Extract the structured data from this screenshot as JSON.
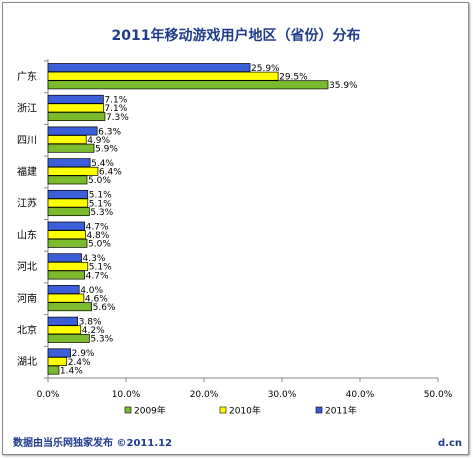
{
  "chart_data": {
    "type": "bar",
    "orientation": "horizontal",
    "title": "2011年移动游戏用户地区（省份）分布",
    "categories": [
      "广东",
      "浙江",
      "四川",
      "福建",
      "江苏",
      "山东",
      "河北",
      "河南",
      "北京",
      "湖北"
    ],
    "series": [
      {
        "name": "2011年",
        "color": "#3a5fd9",
        "values": [
          25.9,
          7.1,
          6.3,
          5.4,
          5.1,
          4.7,
          4.3,
          4.0,
          3.8,
          2.9
        ]
      },
      {
        "name": "2010年",
        "color": "#ffff00",
        "values": [
          29.5,
          7.1,
          4.9,
          6.4,
          5.1,
          4.8,
          5.1,
          4.6,
          4.2,
          2.4
        ]
      },
      {
        "name": "2009年",
        "color": "#7dbb2e",
        "values": [
          35.9,
          7.3,
          5.9,
          5.0,
          5.3,
          5.0,
          4.7,
          5.6,
          5.3,
          1.4
        ]
      }
    ],
    "legend_order": [
      "2009年",
      "2010年",
      "2011年"
    ],
    "xlim": [
      0,
      50
    ],
    "xticks": [
      "0.0%",
      "10.0%",
      "20.0%",
      "30.0%",
      "40.0%",
      "50.0%"
    ],
    "value_suffix": "%",
    "grid": false,
    "legend_position": "bottom"
  },
  "footer": {
    "source": "数据由当乐网独家发布  ©2011.12",
    "site": "d.cn"
  }
}
